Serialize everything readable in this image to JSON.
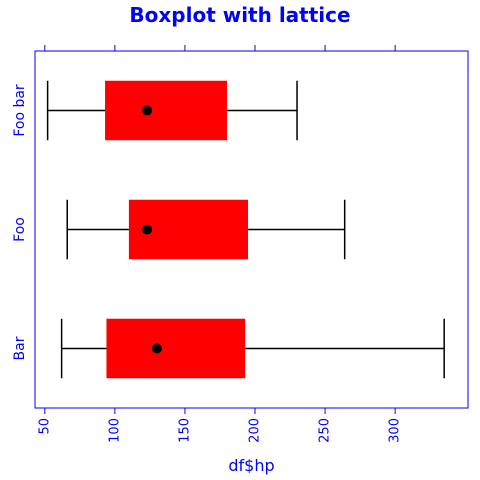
{
  "chart_data": {
    "type": "boxplot",
    "title": "Boxplot with lattice",
    "xlabel": "df$hp",
    "ylabel": "",
    "xlim": [
      43,
      352
    ],
    "x_ticks": [
      50,
      100,
      150,
      200,
      250,
      300
    ],
    "orientation": "horizontal",
    "grid": false,
    "colors": {
      "box_fill": "#ff0000",
      "whisker": "#000000",
      "median_dot": "#000000",
      "axis": "#0000ff",
      "text": "#0000ff"
    },
    "categories": [
      "Bar",
      "Foo",
      "Foo bar"
    ],
    "boxes": [
      {
        "name": "Bar",
        "whisker_low": 62,
        "q1": 94,
        "median": 130,
        "q3": 193,
        "whisker_high": 335
      },
      {
        "name": "Foo",
        "whisker_low": 66,
        "q1": 110,
        "median": 123,
        "q3": 195,
        "whisker_high": 264
      },
      {
        "name": "Foo bar",
        "whisker_low": 52,
        "q1": 93,
        "median": 123,
        "q3": 180,
        "whisker_high": 230
      }
    ]
  }
}
